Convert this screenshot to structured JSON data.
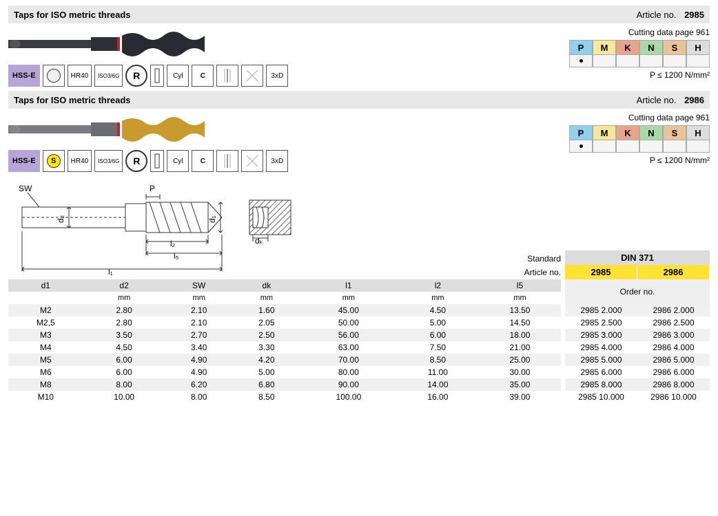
{
  "products": [
    {
      "title": "Taps for ISO metric threads",
      "article_label": "Article no.",
      "article_no": "2985",
      "cutting_page": "Cutting data page 961",
      "condition": "P ≤ 1200 N/mm²",
      "tap_style": "dark",
      "icons": [
        "HSS-E",
        "circle",
        "HR40",
        "ISO3/6G",
        "R",
        "cyl-pre",
        "Cyl",
        "C",
        "flute",
        "cross",
        "3xD"
      ],
      "mat_labels": [
        "P",
        "M",
        "K",
        "N",
        "S",
        "H"
      ],
      "mat_colors": [
        "#8fcff0",
        "#f6e79a",
        "#e9a28b",
        "#a8d9a6",
        "#e9c39a",
        "#dcdcdc"
      ],
      "mat_dots": [
        true,
        false,
        false,
        false,
        false,
        false
      ]
    },
    {
      "title": "Taps for ISO metric threads",
      "article_label": "Article no.",
      "article_no": "2986",
      "cutting_page": "Cutting data page 961",
      "condition": "P ≤ 1200 N/mm²",
      "tap_style": "gold",
      "icons": [
        "HSS-E",
        "s-circle",
        "HR40",
        "ISO3/6G",
        "R",
        "cyl-pre",
        "Cyl",
        "C",
        "flute",
        "cross",
        "3xD"
      ],
      "mat_labels": [
        "P",
        "M",
        "K",
        "N",
        "S",
        "H"
      ],
      "mat_colors": [
        "#8fcff0",
        "#f6e79a",
        "#e9a28b",
        "#a8d9a6",
        "#e9c39a",
        "#dcdcdc"
      ],
      "mat_dots": [
        true,
        false,
        false,
        false,
        false,
        false
      ]
    }
  ],
  "diagram_labels": {
    "sw": "SW",
    "p": "P",
    "d1": "d₁",
    "d2": "d₂",
    "l1": "l₁",
    "l2": "l₂",
    "l5": "l₅",
    "dk": "dₖ"
  },
  "right_labels": {
    "standard": "Standard",
    "article": "Article no.",
    "din": "DIN 371",
    "cols": [
      "2985",
      "2986"
    ],
    "order": "Order no."
  },
  "spec": {
    "columns": [
      "d1",
      "d2",
      "SW",
      "dk",
      "l1",
      "l2",
      "l5"
    ],
    "units": [
      "",
      "mm",
      "mm",
      "mm",
      "mm",
      "mm",
      "mm"
    ],
    "rows": [
      [
        "M2",
        "2.80",
        "2.10",
        "1.60",
        "45.00",
        "4.50",
        "13.50"
      ],
      [
        "M2,5",
        "2.80",
        "2.10",
        "2.05",
        "50.00",
        "5.00",
        "14.50"
      ],
      [
        "M3",
        "3.50",
        "2.70",
        "2.50",
        "56.00",
        "6.00",
        "18.00"
      ],
      [
        "M4",
        "4.50",
        "3.40",
        "3.30",
        "63.00",
        "7.50",
        "21.00"
      ],
      [
        "M5",
        "6.00",
        "4.90",
        "4.20",
        "70.00",
        "8.50",
        "25.00"
      ],
      [
        "M6",
        "6.00",
        "4.90",
        "5.00",
        "80.00",
        "11.00",
        "30.00"
      ],
      [
        "M8",
        "8.00",
        "6.20",
        "6.80",
        "90.00",
        "14.00",
        "35.00"
      ],
      [
        "M10",
        "10.00",
        "8.00",
        "8.50",
        "100.00",
        "16.00",
        "39.00"
      ]
    ],
    "orders": [
      [
        "2985 2.000",
        "2986 2.000"
      ],
      [
        "2985 2.500",
        "2986 2.500"
      ],
      [
        "2985 3.000",
        "2986 3.000"
      ],
      [
        "2985 4.000",
        "2986 4.000"
      ],
      [
        "2985 5.000",
        "2986 5.000"
      ],
      [
        "2985 6.000",
        "2986 6.000"
      ],
      [
        "2985 8.000",
        "2986 8.000"
      ],
      [
        "2985 10.000",
        "2986 10.000"
      ]
    ]
  }
}
